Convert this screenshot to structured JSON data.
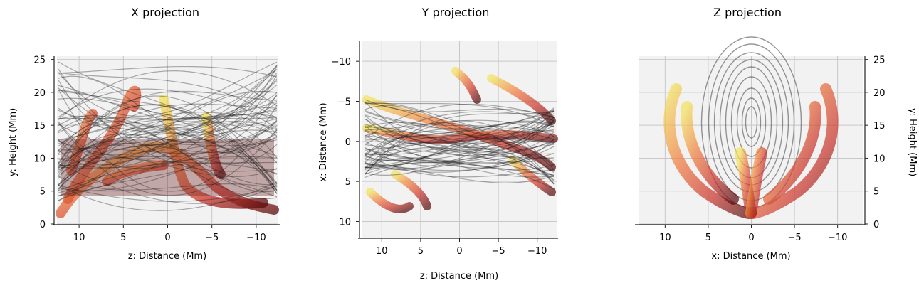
{
  "chart_data": [
    {
      "type": "3d-projection",
      "title": "X projection",
      "xlabel": "z: Distance (Mm)",
      "ylabel": "y: Height (Mm)",
      "x_ticks": [
        10,
        5,
        0,
        -5,
        -10
      ],
      "y_ticks": [
        0,
        5,
        10,
        15,
        20,
        25
      ],
      "xlim": [
        12.5,
        -12.5
      ],
      "ylim": [
        0,
        25.5
      ],
      "x_reversed": true,
      "y_axis_side": "left",
      "grid": true,
      "content": "field lines (black) and flux surfaces (red-yellow)"
    },
    {
      "type": "3d-projection",
      "title": "Y projection",
      "xlabel": "z: Distance (Mm)",
      "ylabel": "x: Distance (Mm)",
      "x_ticks": [
        10,
        5,
        0,
        -5,
        -10
      ],
      "y_ticks": [
        -10,
        -5,
        0,
        5,
        10
      ],
      "xlim": [
        12.5,
        -12.5
      ],
      "ylim": [
        12,
        -12.5
      ],
      "x_reversed": true,
      "y_reversed": true,
      "y_axis_side": "left",
      "grid": true,
      "content": "field lines (black) and flux surfaces (red-yellow)"
    },
    {
      "type": "3d-projection",
      "title": "Z projection",
      "xlabel": "x: Distance (Mm)",
      "ylabel": "y: Height (Mm)",
      "x_ticks": [
        10,
        5,
        0,
        -5,
        -10
      ],
      "y_ticks": [
        0,
        5,
        10,
        15,
        20,
        25
      ],
      "xlim": [
        13,
        -13
      ],
      "ylim": [
        0,
        25.5
      ],
      "x_reversed": true,
      "y_axis_side": "right",
      "grid": true,
      "content": "field lines (black) and flux surfaces (red-yellow)"
    }
  ]
}
